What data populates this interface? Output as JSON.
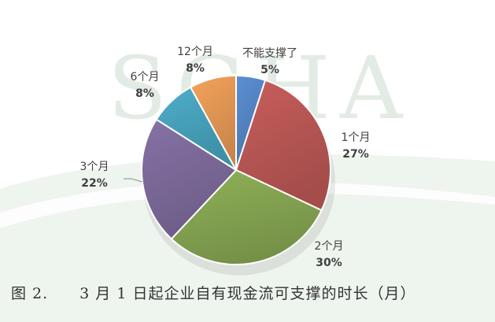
{
  "chart_data": {
    "type": "pie",
    "slices": [
      {
        "label": "不能支撑了",
        "value": 5,
        "pct_text": "5%",
        "color": "#5b8fd3"
      },
      {
        "label": "1个月",
        "value": 27,
        "pct_text": "27%",
        "color": "#c85e5b"
      },
      {
        "label": "2个月",
        "value": 30,
        "pct_text": "30%",
        "color": "#8fb158"
      },
      {
        "label": "3个月",
        "value": 22,
        "pct_text": "22%",
        "color": "#8672a6"
      },
      {
        "label": "6个月",
        "value": 8,
        "pct_text": "8%",
        "color": "#4daecb"
      },
      {
        "label": "12个月",
        "value": 8,
        "pct_text": "8%",
        "color": "#f5a35b"
      }
    ],
    "start_angle": "12 o'clock",
    "direction": "clockwise",
    "legend": "none (labels beside slices)",
    "caption": "图 2.　　3 月 1 日起企业自有现金流可支撑的时长（月）"
  },
  "watermark": {
    "text": "SGHA",
    "color": "#dbe8dc"
  }
}
